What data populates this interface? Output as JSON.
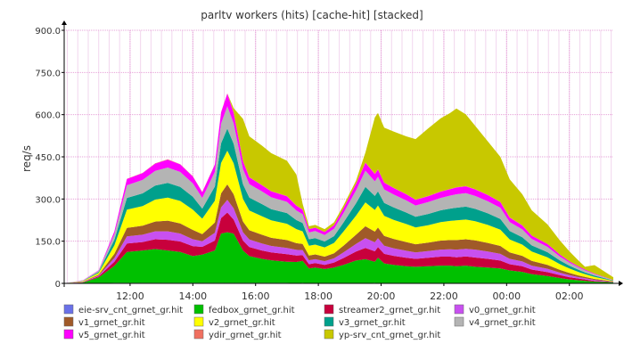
{
  "chart_data": {
    "type": "area",
    "stacked": true,
    "title": "parltv workers (hits) [cache-hit] [stacked]",
    "ylabel": "req/s",
    "xlabel": "",
    "ylim": [
      0,
      900
    ],
    "yticks": [
      "0",
      "150.0",
      "300.0",
      "450.0",
      "600.0",
      "750.0",
      "900.0"
    ],
    "ytick_values": [
      0,
      150,
      300,
      450,
      600,
      750,
      900
    ],
    "x_range": [
      9.9,
      27.4
    ],
    "xticks": [
      "12:00",
      "14:00",
      "16:00",
      "18:00",
      "20:00",
      "22:00",
      "00:00",
      "02:00"
    ],
    "xtick_values": [
      12,
      14,
      16,
      18,
      20,
      22,
      24,
      26
    ],
    "grid": true,
    "legend_position": "bottom",
    "x_hours": [
      9.9,
      10.5,
      11.0,
      11.5,
      11.9,
      12.4,
      12.8,
      13.2,
      13.6,
      14.0,
      14.3,
      14.7,
      14.9,
      15.1,
      15.3,
      15.6,
      15.8,
      16.2,
      16.5,
      17.0,
      17.3,
      17.5,
      17.7,
      17.9,
      18.2,
      18.5,
      18.8,
      19.2,
      19.5,
      19.8,
      19.9,
      20.1,
      20.4,
      20.8,
      21.1,
      21.5,
      21.9,
      22.2,
      22.4,
      22.7,
      23.0,
      23.4,
      23.8,
      24.1,
      24.5,
      24.8,
      25.3,
      25.7,
      26.0,
      26.3,
      26.5,
      26.8,
      27.4
    ],
    "series": [
      {
        "name": "eie-srv_cnt_grnet_gr.hit",
        "color": "#6a71e8",
        "values": [
          0,
          1,
          1,
          2,
          2,
          2,
          2,
          2,
          2,
          2,
          2,
          2,
          2,
          2,
          2,
          2,
          2,
          2,
          2,
          2,
          1,
          2,
          1,
          1,
          1,
          1,
          1,
          1,
          1,
          2,
          1,
          1,
          1,
          1,
          1,
          1,
          1,
          1,
          1,
          1,
          1,
          1,
          1,
          1,
          1,
          1,
          1,
          1,
          1,
          1,
          1,
          1,
          1
        ]
      },
      {
        "name": "fedbox_grnet_gr.hit",
        "color": "#00c000",
        "values": [
          0,
          2,
          20,
          60,
          110,
          115,
          120,
          115,
          110,
          95,
          100,
          115,
          175,
          180,
          175,
          115,
          95,
          85,
          80,
          75,
          75,
          78,
          52,
          55,
          50,
          55,
          65,
          80,
          85,
          75,
          90,
          70,
          65,
          60,
          58,
          60,
          62,
          62,
          60,
          62,
          58,
          55,
          52,
          45,
          40,
          32,
          25,
          18,
          13,
          10,
          8,
          5,
          3
        ]
      },
      {
        "name": "streamer2_grnet_gr.hit",
        "color": "#c8003c",
        "values": [
          0,
          1,
          4,
          15,
          30,
          30,
          35,
          38,
          37,
          35,
          28,
          35,
          55,
          70,
          50,
          35,
          32,
          30,
          28,
          27,
          23,
          20,
          15,
          16,
          15,
          18,
          24,
          32,
          40,
          37,
          38,
          34,
          32,
          30,
          28,
          30,
          32,
          32,
          32,
          33,
          33,
          31,
          28,
          22,
          20,
          16,
          14,
          10,
          8,
          6,
          5,
          3,
          1
        ]
      },
      {
        "name": "v0_grnet_gr.hit",
        "color": "#c850f0",
        "values": [
          0,
          1,
          3,
          13,
          25,
          26,
          28,
          30,
          28,
          25,
          20,
          28,
          38,
          45,
          40,
          30,
          27,
          25,
          23,
          22,
          20,
          18,
          14,
          14,
          13,
          15,
          20,
          27,
          35,
          32,
          32,
          29,
          27,
          25,
          23,
          24,
          25,
          26,
          27,
          27,
          28,
          26,
          24,
          19,
          17,
          14,
          12,
          9,
          7,
          5,
          4,
          3,
          1
        ]
      },
      {
        "name": "v1_grnet_gr.hit",
        "color": "#a05a28",
        "values": [
          0,
          1,
          3,
          15,
          30,
          32,
          35,
          38,
          36,
          33,
          25,
          36,
          50,
          55,
          50,
          38,
          33,
          31,
          29,
          28,
          24,
          22,
          17,
          17,
          16,
          18,
          24,
          33,
          42,
          38,
          38,
          35,
          33,
          31,
          29,
          30,
          32,
          33,
          34,
          34,
          33,
          31,
          28,
          23,
          20,
          17,
          14,
          10,
          8,
          6,
          5,
          4,
          1
        ]
      },
      {
        "name": "v2_grnet_gr.hit",
        "color": "#ffff00",
        "values": [
          0,
          2,
          6,
          30,
          65,
          70,
          78,
          82,
          80,
          72,
          55,
          78,
          108,
          120,
          110,
          80,
          70,
          66,
          62,
          58,
          50,
          45,
          35,
          35,
          33,
          37,
          50,
          68,
          85,
          77,
          78,
          71,
          68,
          64,
          60,
          62,
          66,
          68,
          70,
          70,
          68,
          64,
          58,
          46,
          40,
          33,
          27,
          20,
          16,
          12,
          10,
          7,
          2
        ]
      },
      {
        "name": "v3_grnet_gr.hit",
        "color": "#00a08c",
        "values": [
          0,
          1,
          4,
          20,
          42,
          45,
          50,
          52,
          50,
          46,
          36,
          50,
          70,
          78,
          70,
          52,
          46,
          43,
          40,
          38,
          32,
          30,
          23,
          23,
          21,
          24,
          32,
          44,
          55,
          50,
          50,
          46,
          44,
          41,
          38,
          40,
          42,
          44,
          45,
          46,
          44,
          41,
          38,
          30,
          26,
          22,
          18,
          13,
          10,
          8,
          6,
          5,
          1
        ]
      },
      {
        "name": "v4_grnet_gr.hit",
        "color": "#b4b4b4",
        "values": [
          0,
          1,
          4,
          20,
          45,
          48,
          52,
          55,
          53,
          48,
          38,
          52,
          70,
          80,
          72,
          54,
          48,
          45,
          42,
          40,
          34,
          31,
          24,
          25,
          23,
          26,
          34,
          46,
          58,
          52,
          52,
          48,
          46,
          43,
          40,
          42,
          44,
          46,
          48,
          48,
          46,
          43,
          40,
          32,
          28,
          23,
          19,
          14,
          11,
          8,
          7,
          5,
          1
        ]
      },
      {
        "name": "v5_grnet_gr.hit",
        "color": "#ff00ff",
        "values": [
          0,
          1,
          2,
          10,
          22,
          24,
          26,
          28,
          27,
          24,
          20,
          26,
          40,
          45,
          38,
          28,
          24,
          22,
          21,
          20,
          17,
          16,
          12,
          12,
          11,
          13,
          17,
          23,
          28,
          26,
          26,
          24,
          23,
          22,
          20,
          21,
          22,
          23,
          24,
          24,
          23,
          22,
          20,
          16,
          14,
          12,
          10,
          7,
          5,
          4,
          3,
          2,
          1
        ]
      },
      {
        "name": "ydir_grnet_gr.hit",
        "color": "#f07060",
        "values": [
          0,
          0,
          0,
          0,
          1,
          1,
          1,
          1,
          1,
          1,
          1,
          1,
          1,
          1,
          1,
          1,
          1,
          1,
          1,
          1,
          1,
          1,
          0,
          0,
          0,
          0,
          0,
          1,
          1,
          1,
          1,
          1,
          1,
          1,
          1,
          1,
          1,
          1,
          1,
          1,
          1,
          1,
          1,
          1,
          1,
          0,
          0,
          0,
          0,
          0,
          0,
          0,
          0
        ]
      },
      {
        "name": "yp-srv_cnt_grnet_gr.hit",
        "color": "#c8c800",
        "values": [
          0,
          0,
          0,
          0,
          0,
          0,
          0,
          0,
          0,
          0,
          0,
          0,
          0,
          0,
          15,
          150,
          145,
          140,
          135,
          125,
          110,
          20,
          10,
          10,
          10,
          10,
          10,
          10,
          35,
          200,
          200,
          195,
          200,
          205,
          215,
          240,
          260,
          270,
          280,
          255,
          225,
          190,
          160,
          135,
          110,
          90,
          70,
          50,
          35,
          20,
          10,
          30,
          10
        ]
      }
    ]
  }
}
